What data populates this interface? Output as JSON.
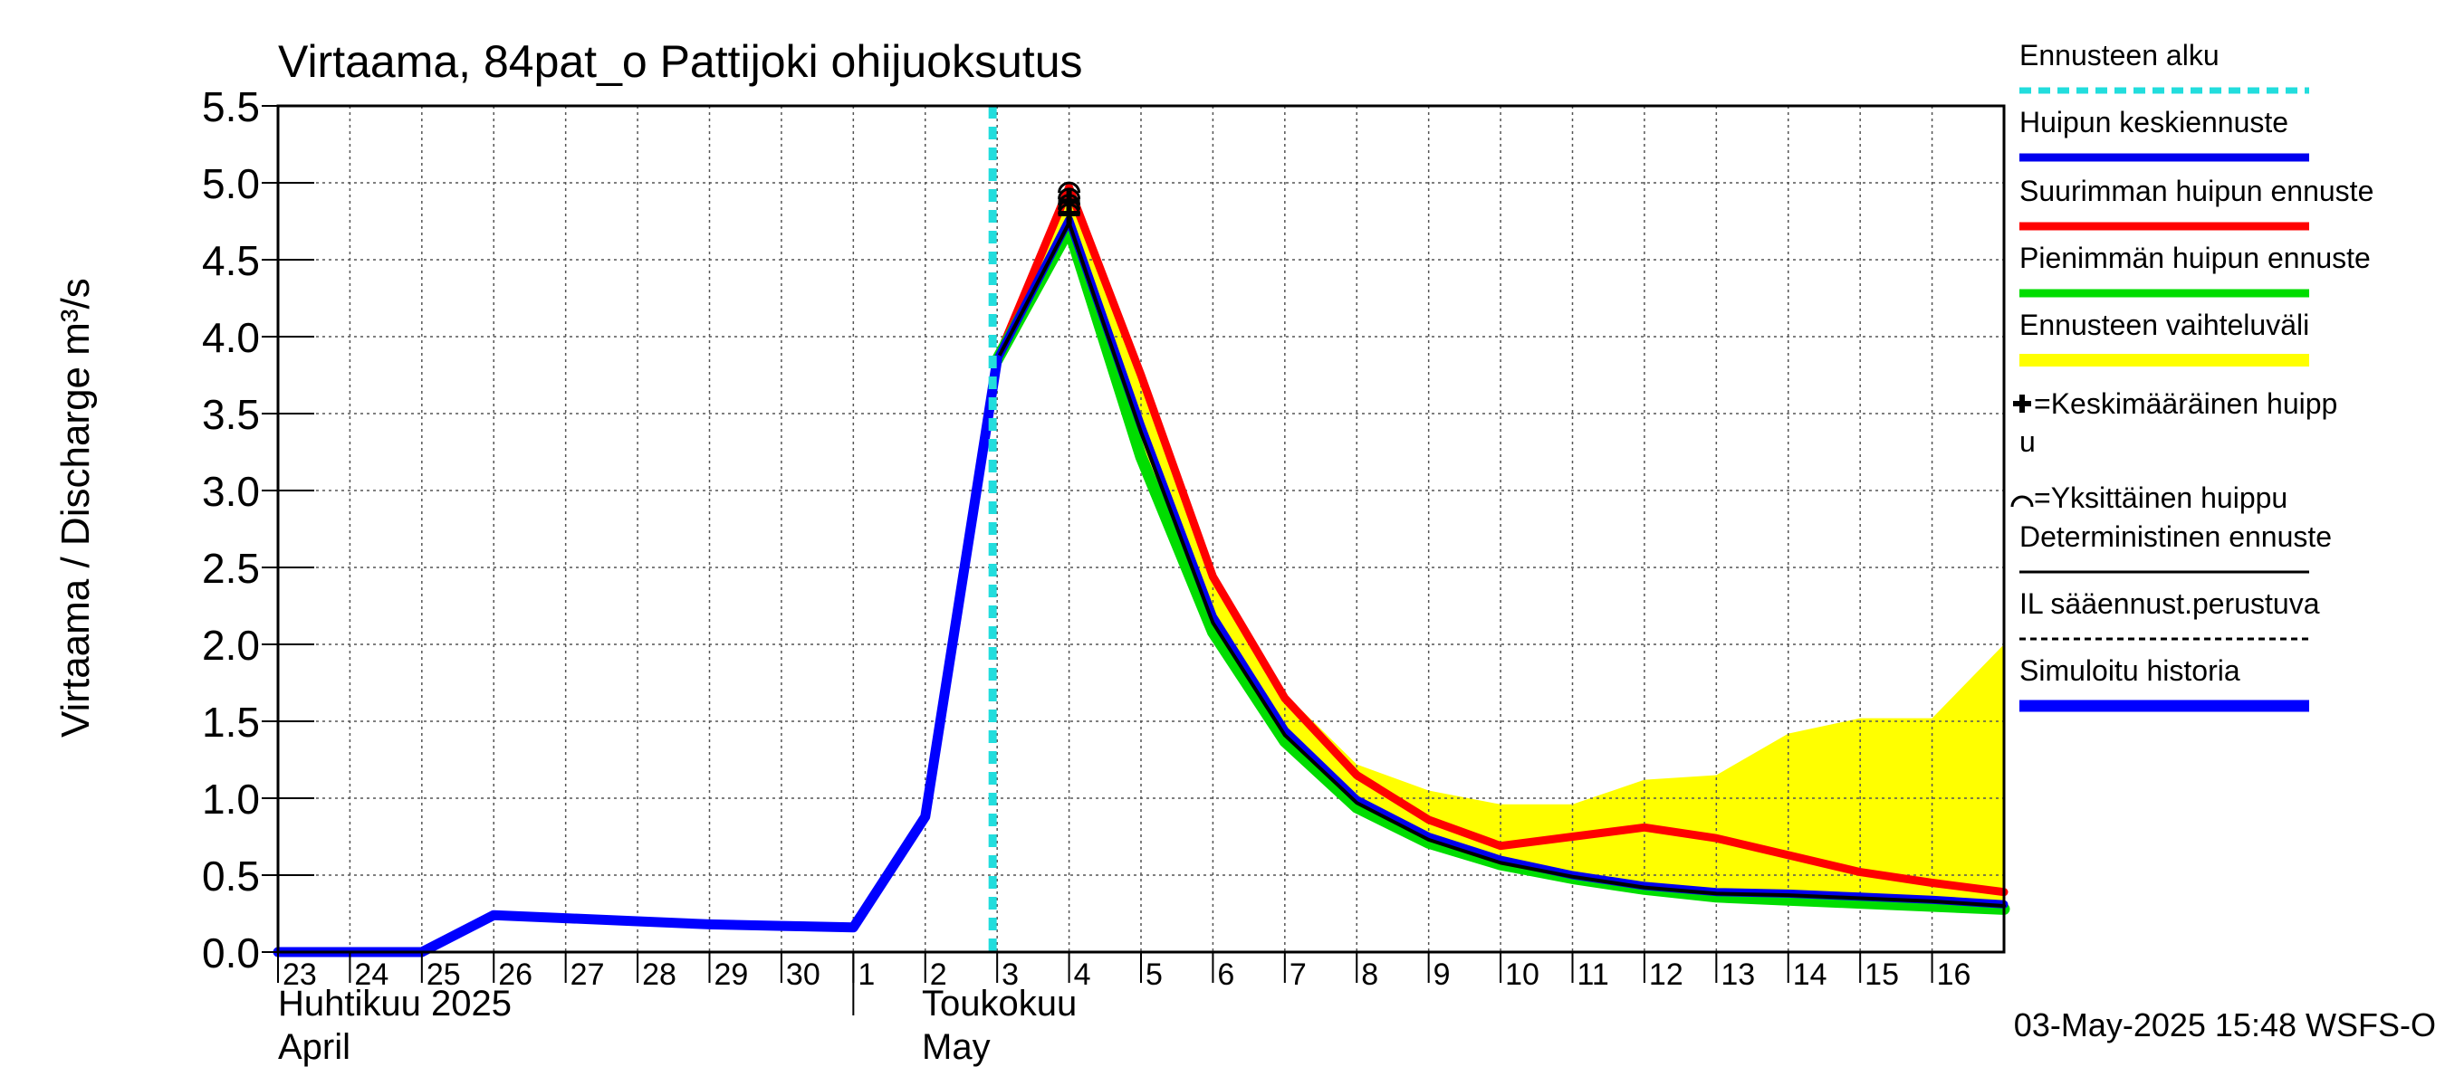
{
  "chart_data": {
    "type": "line",
    "title": "Virtaama, 84pat_o Pattijoki ohijuoksutus",
    "ylabel": "Virtaama / Discharge",
    "yunit": "m³/s",
    "ylim": [
      0,
      5.5
    ],
    "yticks": [
      "0.0",
      "0.5",
      "1.0",
      "1.5",
      "2.0",
      "2.5",
      "3.0",
      "3.5",
      "4.0",
      "4.5",
      "5.0",
      "5.5"
    ],
    "ytick_values": [
      0,
      0.5,
      1,
      1.5,
      2,
      2.5,
      3,
      3.5,
      4,
      4.5,
      5,
      5.5
    ],
    "xlim": [
      "2025-04-23",
      "2025-05-17"
    ],
    "xticks": [
      "23",
      "24",
      "25",
      "26",
      "27",
      "28",
      "29",
      "30",
      "1",
      "2",
      "3",
      "4",
      "5",
      "6",
      "7",
      "8",
      "9",
      "10",
      "11",
      "12",
      "13",
      "14",
      "15",
      "16"
    ],
    "xtick_dates": [
      "2025-04-23",
      "2025-04-24",
      "2025-04-25",
      "2025-04-26",
      "2025-04-27",
      "2025-04-28",
      "2025-04-29",
      "2025-04-30",
      "2025-05-01",
      "2025-05-02",
      "2025-05-03",
      "2025-05-04",
      "2025-05-05",
      "2025-05-06",
      "2025-05-07",
      "2025-05-08",
      "2025-05-09",
      "2025-05-10",
      "2025-05-11",
      "2025-05-12",
      "2025-05-13",
      "2025-05-14",
      "2025-05-15",
      "2025-05-16"
    ],
    "month_labels": [
      {
        "fi": "Huhtikuu  2025",
        "en": "April",
        "date": "2025-04-23"
      },
      {
        "fi": "Toukokuu",
        "en": "May",
        "date": "2025-05-01"
      }
    ],
    "forecast_start": "2025-05-03",
    "grid": true,
    "legend_position": "right",
    "colors": {
      "forecast_start": "#22dddd",
      "mean_peak": "#0000ee",
      "max_peak": "#ff0000",
      "min_peak": "#00dd00",
      "range": "#ffff00",
      "deterministic": "#000000",
      "history": "#0000ff"
    },
    "legend": [
      {
        "label": "Ennusteen alku",
        "style": "dotted-cyan",
        "color": "#22dddd"
      },
      {
        "label": "Huipun keskiennuste",
        "style": "line",
        "color": "#0000ee"
      },
      {
        "label": "Suurimman huipun ennuste",
        "style": "line",
        "color": "#ff0000"
      },
      {
        "label": "Pienimmän huipun ennuste",
        "style": "line",
        "color": "#00dd00"
      },
      {
        "label": "Ennusteen vaihteluväli",
        "style": "band",
        "color": "#ffff00"
      },
      {
        "label": "=Keskimääräinen huipp",
        "label2": "u",
        "style": "plus-marker",
        "color": "#000000"
      },
      {
        "label": "=Yksittäinen huippu",
        "style": "arc-marker",
        "color": "#000000"
      },
      {
        "label": "Deterministinen ennuste",
        "style": "thin-line",
        "color": "#000000"
      },
      {
        "label": "IL sääennust.perustuva",
        "style": "dashed",
        "color": "#000000"
      },
      {
        "label": "Simuloitu historia",
        "style": "thick-line",
        "color": "#0000ff"
      }
    ],
    "series": [
      {
        "name": "Simuloitu historia",
        "x": [
          "2025-04-23",
          "2025-04-24",
          "2025-04-25",
          "2025-04-26",
          "2025-04-27",
          "2025-04-28",
          "2025-04-29",
          "2025-04-30",
          "2025-05-01",
          "2025-05-02",
          "2025-05-03"
        ],
        "y": [
          0,
          0,
          0,
          0.24,
          0.22,
          0.2,
          0.18,
          0.17,
          0.16,
          0.88,
          3.85
        ]
      },
      {
        "name": "Ennusteen vaihteluväli",
        "x": [
          "2025-05-03",
          "2025-05-04",
          "2025-05-05",
          "2025-05-06",
          "2025-05-07",
          "2025-05-08",
          "2025-05-09",
          "2025-05-10",
          "2025-05-11",
          "2025-05-12",
          "2025-05-13",
          "2025-05-14",
          "2025-05-15",
          "2025-05-16",
          "2025-05-17"
        ],
        "upper": [
          3.85,
          5.0,
          3.78,
          2.45,
          1.68,
          1.22,
          1.05,
          0.96,
          0.96,
          1.12,
          1.15,
          1.42,
          1.52,
          1.52,
          2.0
        ],
        "lower": [
          3.85,
          4.7,
          3.2,
          2.05,
          1.35,
          0.93,
          0.7,
          0.56,
          0.47,
          0.4,
          0.35,
          0.33,
          0.31,
          0.29,
          0.27
        ]
      },
      {
        "name": "Suurimman huipun ennuste",
        "x": [
          "2025-05-03",
          "2025-05-04",
          "2025-05-05",
          "2025-05-06",
          "2025-05-07",
          "2025-05-08",
          "2025-05-09",
          "2025-05-10",
          "2025-05-11",
          "2025-05-12",
          "2025-05-13",
          "2025-05-14",
          "2025-05-15",
          "2025-05-16",
          "2025-05-17"
        ],
        "y": [
          3.85,
          4.97,
          3.75,
          2.44,
          1.65,
          1.15,
          0.86,
          0.69,
          0.75,
          0.81,
          0.74,
          0.63,
          0.52,
          0.45,
          0.39
        ]
      },
      {
        "name": "Pienimmän huipun ennuste",
        "x": [
          "2025-05-03",
          "2025-05-04",
          "2025-05-05",
          "2025-05-06",
          "2025-05-07",
          "2025-05-08",
          "2025-05-09",
          "2025-05-10",
          "2025-05-11",
          "2025-05-12",
          "2025-05-13",
          "2025-05-14",
          "2025-05-15",
          "2025-05-16",
          "2025-05-17"
        ],
        "y": [
          3.85,
          4.7,
          3.22,
          2.08,
          1.37,
          0.94,
          0.71,
          0.57,
          0.48,
          0.41,
          0.36,
          0.34,
          0.32,
          0.3,
          0.28
        ]
      },
      {
        "name": "Huipun keskiennuste",
        "x": [
          "2025-05-03",
          "2025-05-04",
          "2025-05-05",
          "2025-05-06",
          "2025-05-07",
          "2025-05-08",
          "2025-05-09",
          "2025-05-10",
          "2025-05-11",
          "2025-05-12",
          "2025-05-13",
          "2025-05-14",
          "2025-05-15",
          "2025-05-16",
          "2025-05-17"
        ],
        "y": [
          3.85,
          4.76,
          3.42,
          2.18,
          1.44,
          0.99,
          0.75,
          0.6,
          0.5,
          0.43,
          0.39,
          0.38,
          0.36,
          0.34,
          0.31
        ]
      },
      {
        "name": "Deterministinen ennuste",
        "x": [
          "2025-05-03",
          "2025-05-04",
          "2025-05-05",
          "2025-05-06",
          "2025-05-07",
          "2025-05-08",
          "2025-05-09",
          "2025-05-10",
          "2025-05-11",
          "2025-05-12",
          "2025-05-13",
          "2025-05-14",
          "2025-05-15",
          "2025-05-16",
          "2025-05-17"
        ],
        "y": [
          3.85,
          4.74,
          3.38,
          2.14,
          1.41,
          0.97,
          0.73,
          0.58,
          0.49,
          0.42,
          0.38,
          0.37,
          0.35,
          0.33,
          0.3
        ]
      }
    ],
    "peak_markers": {
      "date": "2025-05-04",
      "single_peaks": [
        4.97,
        4.93,
        4.89,
        4.86,
        4.83
      ],
      "mean_peak": [
        4.88,
        4.8
      ]
    },
    "footer": "03-May-2025 15:48 WSFS-O"
  }
}
